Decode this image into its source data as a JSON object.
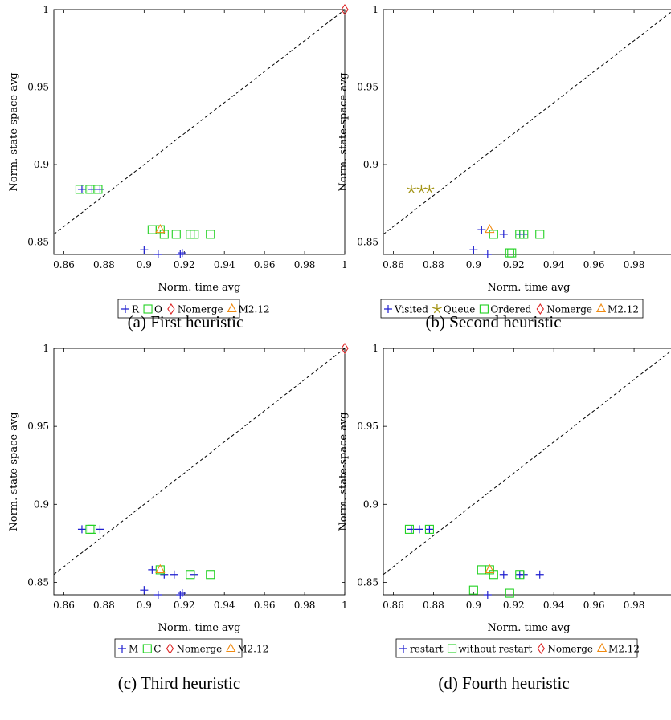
{
  "colors": {
    "blue": "#1f1fcf",
    "green": "#22d122",
    "red": "#dd2222",
    "orange": "#f08a10",
    "olive": "#a49518"
  },
  "chart_data": [
    {
      "type": "scatter",
      "caption": "(a) First heuristic",
      "xlabel": "Norm. time avg",
      "ylabel": "Norm. state-space avg",
      "xlim": [
        0.855,
        1.0
      ],
      "ylim": [
        0.842,
        1.0
      ],
      "xticks": [
        {
          "v": 0.86,
          "label": "0.86"
        },
        {
          "v": 0.88,
          "label": "0.88"
        },
        {
          "v": 0.9,
          "label": "0.9"
        },
        {
          "v": 0.92,
          "label": "0.92"
        },
        {
          "v": 0.94,
          "label": "0.94"
        },
        {
          "v": 0.96,
          "label": "0.96"
        },
        {
          "v": 0.98,
          "label": "0.98"
        },
        {
          "v": 1.0,
          "label": "1"
        }
      ],
      "yticks": [
        {
          "v": 0.85,
          "label": "0.85"
        },
        {
          "v": 0.9,
          "label": "0.9"
        },
        {
          "v": 0.95,
          "label": "0.95"
        },
        {
          "v": 1.0,
          "label": "1"
        }
      ],
      "diagonal": true,
      "series": [
        {
          "name": "R",
          "marker": "plus",
          "color": "blue",
          "points": [
            [
              0.869,
              0.884
            ],
            [
              0.874,
              0.884
            ],
            [
              0.878,
              0.884
            ],
            [
              0.9,
              0.845
            ],
            [
              0.907,
              0.842
            ],
            [
              0.918,
              0.842
            ],
            [
              0.919,
              0.843
            ]
          ]
        },
        {
          "name": "O",
          "marker": "square",
          "color": "green",
          "points": [
            [
              0.868,
              0.884
            ],
            [
              0.873,
              0.884
            ],
            [
              0.874,
              0.884
            ],
            [
              0.877,
              0.884
            ],
            [
              0.904,
              0.858
            ],
            [
              0.908,
              0.858
            ],
            [
              0.91,
              0.855
            ],
            [
              0.916,
              0.855
            ],
            [
              0.923,
              0.855
            ],
            [
              0.925,
              0.855
            ],
            [
              0.933,
              0.855
            ]
          ]
        },
        {
          "name": "Nomerge",
          "marker": "diamond",
          "color": "red",
          "points": [
            [
              1.0,
              1.0
            ]
          ]
        },
        {
          "name": "M2.12",
          "marker": "triangle",
          "color": "orange",
          "points": [
            [
              0.908,
              0.858
            ]
          ]
        }
      ]
    },
    {
      "type": "scatter",
      "caption": "(b) Second heuristic",
      "xlabel": "Norm. time avg",
      "ylabel": "Norm. state-space avg",
      "xlim": [
        0.855,
        1.0
      ],
      "ylim": [
        0.842,
        1.0
      ],
      "xticks": [
        {
          "v": 0.86,
          "label": "0.86"
        },
        {
          "v": 0.88,
          "label": "0.88"
        },
        {
          "v": 0.9,
          "label": "0.9"
        },
        {
          "v": 0.92,
          "label": "0.92"
        },
        {
          "v": 0.94,
          "label": "0.94"
        },
        {
          "v": 0.96,
          "label": "0.96"
        },
        {
          "v": 0.98,
          "label": "0.98"
        }
      ],
      "yticks": [
        {
          "v": 0.85,
          "label": "0.85"
        },
        {
          "v": 0.9,
          "label": "0.9"
        },
        {
          "v": 0.95,
          "label": "0.95"
        },
        {
          "v": 1.0,
          "label": "1"
        }
      ],
      "diagonal": true,
      "series": [
        {
          "name": "Visited",
          "marker": "plus",
          "color": "blue",
          "points": [
            [
              0.9,
              0.845
            ],
            [
              0.904,
              0.858
            ],
            [
              0.907,
              0.842
            ],
            [
              0.915,
              0.855
            ],
            [
              0.923,
              0.855
            ],
            [
              0.925,
              0.855
            ]
          ]
        },
        {
          "name": "Queue",
          "marker": "star",
          "color": "olive",
          "points": [
            [
              0.869,
              0.884
            ],
            [
              0.874,
              0.884
            ],
            [
              0.878,
              0.884
            ]
          ]
        },
        {
          "name": "Ordered",
          "marker": "square",
          "color": "green",
          "points": [
            [
              0.91,
              0.855
            ],
            [
              0.918,
              0.843
            ],
            [
              0.919,
              0.843
            ],
            [
              0.923,
              0.855
            ],
            [
              0.925,
              0.855
            ],
            [
              0.933,
              0.855
            ]
          ]
        },
        {
          "name": "Nomerge",
          "marker": "diamond",
          "color": "red",
          "points": []
        },
        {
          "name": "M2.12",
          "marker": "triangle",
          "color": "orange",
          "points": [
            [
              0.908,
              0.858
            ]
          ]
        }
      ]
    },
    {
      "type": "scatter",
      "caption": "(c) Third heuristic",
      "xlabel": "Norm. time avg",
      "ylabel": "Norm. state-space avg",
      "xlim": [
        0.855,
        1.0
      ],
      "ylim": [
        0.842,
        1.0
      ],
      "xticks": [
        {
          "v": 0.86,
          "label": "0.86"
        },
        {
          "v": 0.88,
          "label": "0.88"
        },
        {
          "v": 0.9,
          "label": "0.9"
        },
        {
          "v": 0.92,
          "label": "0.92"
        },
        {
          "v": 0.94,
          "label": "0.94"
        },
        {
          "v": 0.96,
          "label": "0.96"
        },
        {
          "v": 0.98,
          "label": "0.98"
        },
        {
          "v": 1.0,
          "label": "1"
        }
      ],
      "yticks": [
        {
          "v": 0.85,
          "label": "0.85"
        },
        {
          "v": 0.9,
          "label": "0.9"
        },
        {
          "v": 0.95,
          "label": "0.95"
        },
        {
          "v": 1.0,
          "label": "1"
        }
      ],
      "diagonal": true,
      "series": [
        {
          "name": "M",
          "marker": "plus",
          "color": "blue",
          "points": [
            [
              0.869,
              0.884
            ],
            [
              0.878,
              0.884
            ],
            [
              0.9,
              0.845
            ],
            [
              0.904,
              0.858
            ],
            [
              0.907,
              0.842
            ],
            [
              0.91,
              0.855
            ],
            [
              0.915,
              0.855
            ],
            [
              0.918,
              0.842
            ],
            [
              0.919,
              0.843
            ],
            [
              0.925,
              0.855
            ]
          ]
        },
        {
          "name": "C",
          "marker": "square",
          "color": "green",
          "points": [
            [
              0.873,
              0.884
            ],
            [
              0.874,
              0.884
            ],
            [
              0.908,
              0.858
            ],
            [
              0.923,
              0.855
            ],
            [
              0.933,
              0.855
            ]
          ]
        },
        {
          "name": "Nomerge",
          "marker": "diamond",
          "color": "red",
          "points": [
            [
              1.0,
              1.0
            ]
          ]
        },
        {
          "name": "M2.12",
          "marker": "triangle",
          "color": "orange",
          "points": [
            [
              0.908,
              0.858
            ]
          ]
        }
      ]
    },
    {
      "type": "scatter",
      "caption": "(d) Fourth heuristic",
      "xlabel": "Norm. time avg",
      "ylabel": "Norm. state-space avg",
      "xlim": [
        0.855,
        1.0
      ],
      "ylim": [
        0.842,
        1.0
      ],
      "xticks": [
        {
          "v": 0.86,
          "label": "0.86"
        },
        {
          "v": 0.88,
          "label": "0.88"
        },
        {
          "v": 0.9,
          "label": "0.9"
        },
        {
          "v": 0.92,
          "label": "0.92"
        },
        {
          "v": 0.94,
          "label": "0.94"
        },
        {
          "v": 0.96,
          "label": "0.96"
        },
        {
          "v": 0.98,
          "label": "0.98"
        }
      ],
      "yticks": [
        {
          "v": 0.85,
          "label": "0.85"
        },
        {
          "v": 0.9,
          "label": "0.9"
        },
        {
          "v": 0.95,
          "label": "0.95"
        },
        {
          "v": 1.0,
          "label": "1"
        }
      ],
      "diagonal": true,
      "series": [
        {
          "name": "restart",
          "marker": "plus",
          "color": "blue",
          "points": [
            [
              0.869,
              0.884
            ],
            [
              0.873,
              0.884
            ],
            [
              0.878,
              0.884
            ],
            [
              0.907,
              0.842
            ],
            [
              0.915,
              0.855
            ],
            [
              0.923,
              0.855
            ],
            [
              0.925,
              0.855
            ],
            [
              0.933,
              0.855
            ]
          ]
        },
        {
          "name": "without restart",
          "marker": "square",
          "color": "green",
          "points": [
            [
              0.868,
              0.884
            ],
            [
              0.878,
              0.884
            ],
            [
              0.9,
              0.845
            ],
            [
              0.904,
              0.858
            ],
            [
              0.908,
              0.858
            ],
            [
              0.91,
              0.855
            ],
            [
              0.918,
              0.843
            ],
            [
              0.923,
              0.855
            ]
          ]
        },
        {
          "name": "Nomerge",
          "marker": "diamond",
          "color": "red",
          "points": []
        },
        {
          "name": "M2.12",
          "marker": "triangle",
          "color": "orange",
          "points": [
            [
              0.908,
              0.858
            ]
          ]
        }
      ]
    }
  ]
}
